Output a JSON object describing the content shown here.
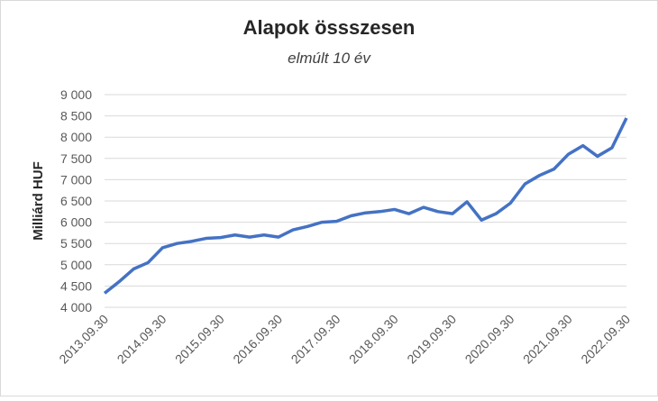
{
  "chart_data": {
    "type": "line",
    "title": "Alapok össszesen",
    "subtitle": "elmúlt 10 év",
    "y_label": "Milliárd HUF",
    "categories": [
      "2013.09.30",
      null,
      null,
      null,
      "2014.09.30",
      null,
      null,
      null,
      "2015.09.30",
      null,
      null,
      null,
      "2016.09.30",
      null,
      null,
      null,
      "2017.09.30",
      null,
      null,
      null,
      "2018.09.30",
      null,
      null,
      null,
      "2019.09.30",
      null,
      null,
      null,
      "2020.09.30",
      null,
      null,
      null,
      "2021.09.30",
      null,
      null,
      null,
      "2022.09.30"
    ],
    "series": [
      {
        "name": "Alapok össszesen",
        "color": "#4472c4",
        "values": [
          4330,
          4600,
          4900,
          5050,
          5400,
          5500,
          5550,
          5620,
          5640,
          5700,
          5650,
          5700,
          5650,
          5820,
          5900,
          6000,
          6020,
          6150,
          6220,
          6250,
          6300,
          6200,
          6350,
          6250,
          6200,
          6480,
          6050,
          6200,
          6450,
          6900,
          7100,
          7250,
          7600,
          7800,
          7550,
          7750,
          8450
        ]
      }
    ],
    "ylim": [
      4000,
      9000
    ],
    "yticks": [
      {
        "value": 4000,
        "label": "4 000"
      },
      {
        "value": 4500,
        "label": "4 500"
      },
      {
        "value": 5000,
        "label": "5 000"
      },
      {
        "value": 5500,
        "label": "5 500"
      },
      {
        "value": 6000,
        "label": "6 000"
      },
      {
        "value": 6500,
        "label": "6 500"
      },
      {
        "value": 7000,
        "label": "7 000"
      },
      {
        "value": 7500,
        "label": "7 500"
      },
      {
        "value": 8000,
        "label": "8 000"
      },
      {
        "value": 8500,
        "label": "8 500"
      },
      {
        "value": 9000,
        "label": "9 000"
      }
    ],
    "grid": true
  }
}
